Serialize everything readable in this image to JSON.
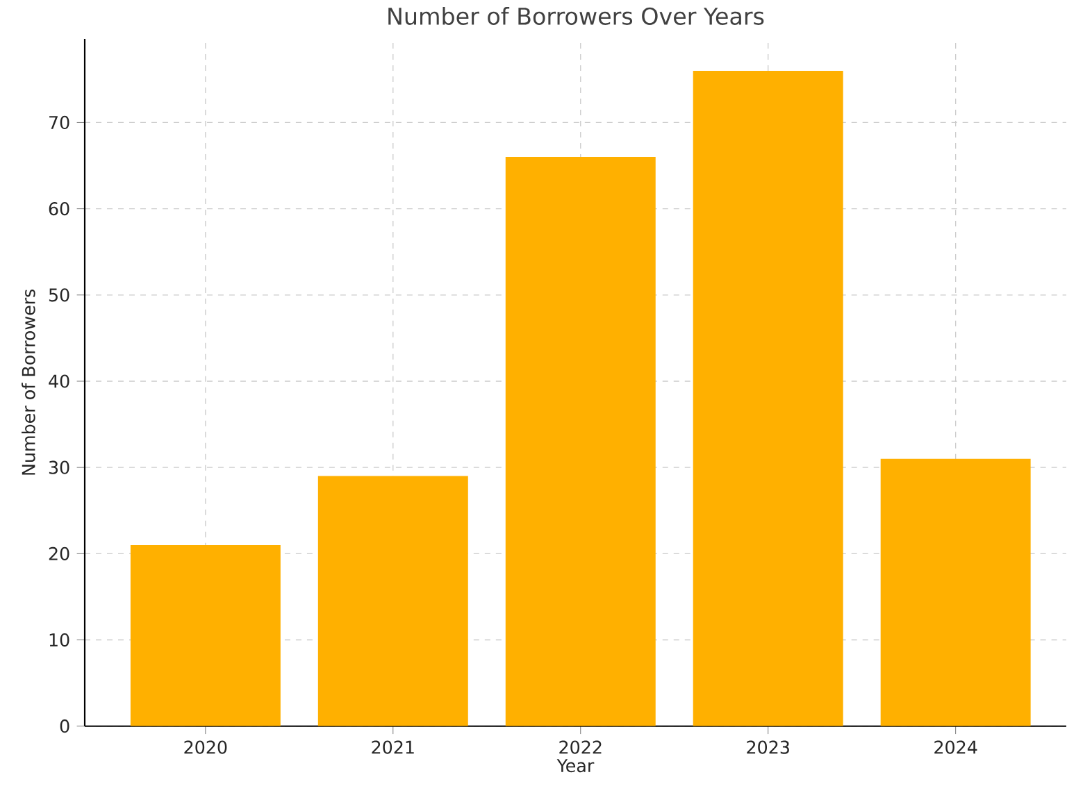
{
  "chart_data": {
    "type": "bar",
    "title": "Number of Borrowers Over Years",
    "xlabel": "Year",
    "ylabel": "Number of Borrowers",
    "categories": [
      "2020",
      "2021",
      "2022",
      "2023",
      "2024"
    ],
    "values": [
      21,
      29,
      66,
      76,
      31
    ],
    "color": "#ffb000",
    "ylim": [
      0,
      79.7
    ],
    "yticks": [
      0,
      10,
      20,
      30,
      40,
      50,
      60,
      70
    ],
    "grid": true
  }
}
